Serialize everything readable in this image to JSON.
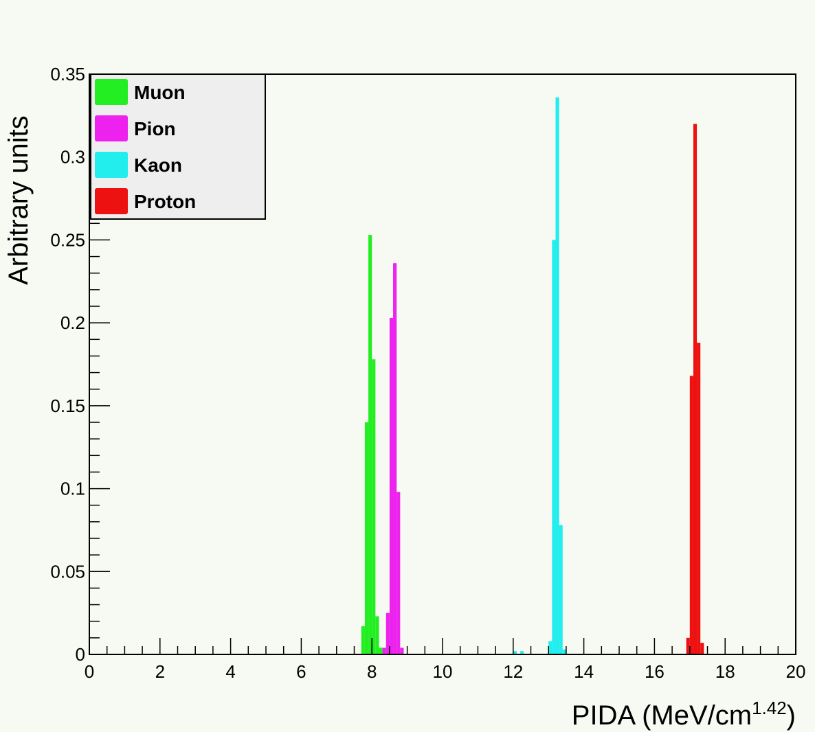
{
  "chart_data": {
    "type": "bar",
    "title": "",
    "xlabel": "PIDA (MeV/cm",
    "xlabel_sup": "1.42",
    "xlabel_close": ")",
    "ylabel": "Arbitrary units",
    "xlim": [
      0,
      20
    ],
    "ylim": [
      0,
      0.35
    ],
    "bin_width": 0.1,
    "x_ticks": [
      0,
      2,
      4,
      6,
      8,
      10,
      12,
      14,
      16,
      18,
      20
    ],
    "y_ticks": [
      0,
      0.05,
      0.1,
      0.15,
      0.2,
      0.25,
      0.3,
      0.35
    ],
    "x_tick_labels": [
      "0",
      "2",
      "4",
      "6",
      "8",
      "10",
      "12",
      "14",
      "16",
      "18",
      "20"
    ],
    "y_tick_labels": [
      "0",
      "0.05",
      "0.1",
      "0.15",
      "0.2",
      "0.25",
      "0.3",
      "0.35"
    ],
    "grid": false,
    "legend_position": "top-left",
    "series": [
      {
        "name": "Muon",
        "color": "#22ee22",
        "bins": [
          {
            "x": 7.7,
            "y": 0.017
          },
          {
            "x": 7.8,
            "y": 0.14
          },
          {
            "x": 7.9,
            "y": 0.253
          },
          {
            "x": 8.0,
            "y": 0.178
          },
          {
            "x": 8.1,
            "y": 0.023
          },
          {
            "x": 8.2,
            "y": 0.004
          }
        ]
      },
      {
        "name": "Pion",
        "color": "#ee22ee",
        "bins": [
          {
            "x": 8.3,
            "y": 0.004
          },
          {
            "x": 8.4,
            "y": 0.025
          },
          {
            "x": 8.5,
            "y": 0.203
          },
          {
            "x": 8.6,
            "y": 0.236
          },
          {
            "x": 8.7,
            "y": 0.098
          },
          {
            "x": 8.8,
            "y": 0.004
          }
        ]
      },
      {
        "name": "Kaon",
        "color": "#22eeee",
        "bins": [
          {
            "x": 12.0,
            "y": 0.002
          },
          {
            "x": 12.2,
            "y": 0.002
          },
          {
            "x": 13.0,
            "y": 0.008
          },
          {
            "x": 13.1,
            "y": 0.25
          },
          {
            "x": 13.2,
            "y": 0.336
          },
          {
            "x": 13.3,
            "y": 0.078
          },
          {
            "x": 13.4,
            "y": 0.003
          }
        ]
      },
      {
        "name": "Proton",
        "color": "#ee1111",
        "bins": [
          {
            "x": 16.9,
            "y": 0.01
          },
          {
            "x": 17.0,
            "y": 0.168
          },
          {
            "x": 17.1,
            "y": 0.32
          },
          {
            "x": 17.2,
            "y": 0.188
          },
          {
            "x": 17.3,
            "y": 0.007
          }
        ]
      }
    ]
  }
}
